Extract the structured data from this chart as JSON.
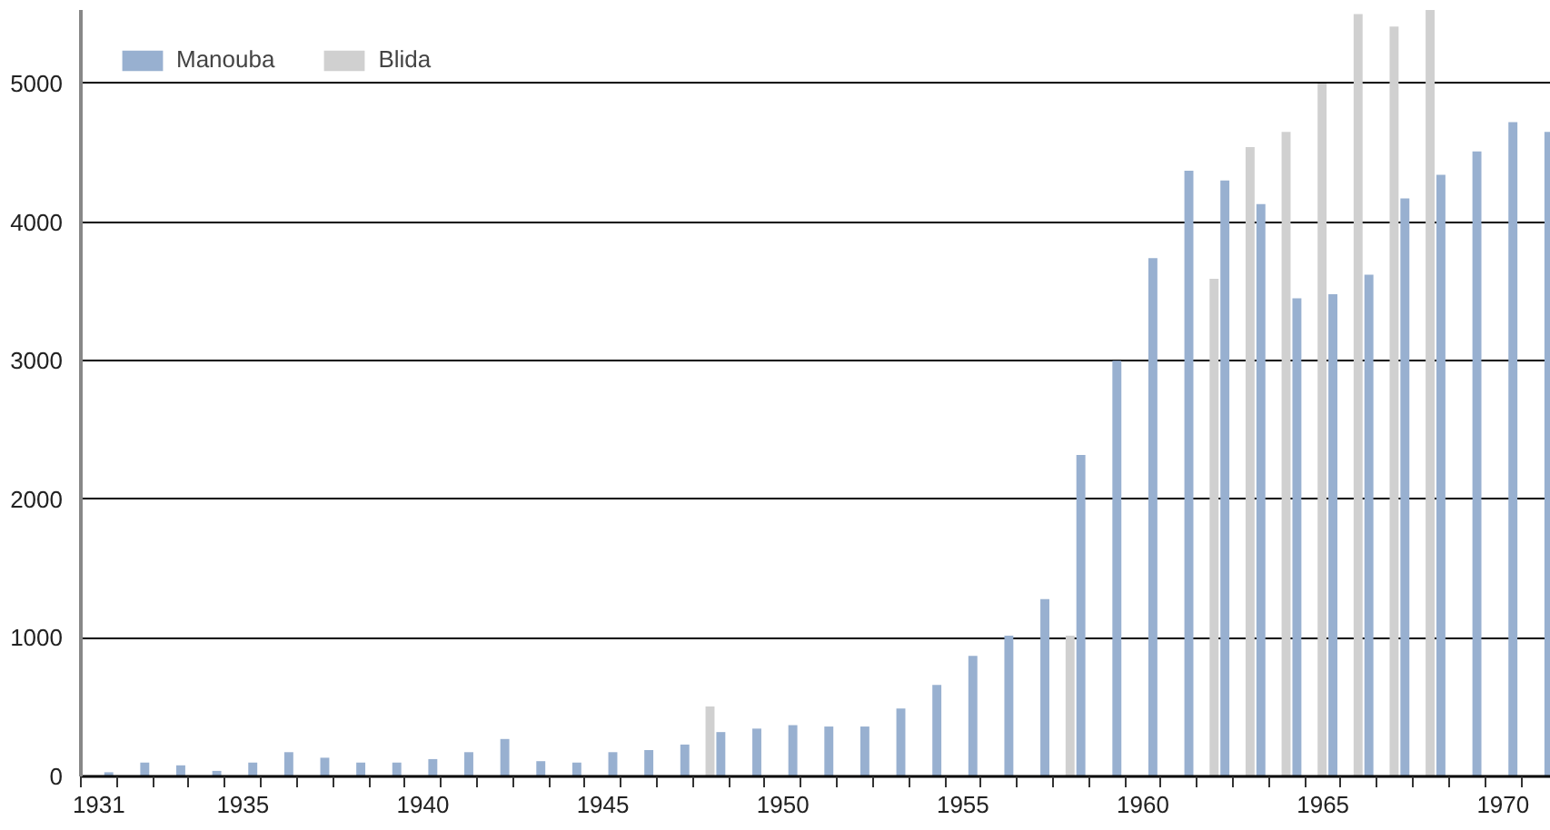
{
  "chart_data": {
    "type": "bar",
    "x": [
      1931,
      1932,
      1933,
      1934,
      1935,
      1936,
      1937,
      1938,
      1939,
      1940,
      1941,
      1942,
      1943,
      1944,
      1945,
      1946,
      1947,
      1948,
      1949,
      1950,
      1951,
      1952,
      1953,
      1954,
      1955,
      1956,
      1957,
      1958,
      1959,
      1960,
      1961,
      1962,
      1963,
      1964,
      1965,
      1966,
      1967,
      1968,
      1969,
      1970,
      1971
    ],
    "series": [
      {
        "name": "Manouba",
        "color": "#98b0d0",
        "values": [
          30,
          100,
          80,
          40,
          100,
          175,
          135,
          100,
          100,
          125,
          175,
          270,
          110,
          100,
          175,
          190,
          230,
          320,
          345,
          370,
          360,
          360,
          490,
          660,
          870,
          1015,
          1280,
          2320,
          3000,
          3740,
          4370,
          4300,
          4130,
          3450,
          3480,
          3620,
          4170,
          4340,
          4510,
          4720,
          4650
        ]
      },
      {
        "name": "Blida",
        "color": "#d0d0d0",
        "values": [
          null,
          null,
          null,
          null,
          null,
          null,
          null,
          null,
          null,
          null,
          null,
          null,
          null,
          null,
          null,
          null,
          null,
          505,
          null,
          null,
          null,
          null,
          null,
          null,
          null,
          null,
          null,
          1015,
          null,
          null,
          null,
          3590,
          4540,
          4650,
          5000,
          5500,
          5410,
          5530,
          null,
          null,
          null
        ]
      }
    ],
    "xlim": [
      1930.5,
      1971.33
    ],
    "xticks": [
      1931,
      1935,
      1940,
      1945,
      1950,
      1955,
      1960,
      1965,
      1970,
      {
        "value": 1930.5,
        "label": null
      },
      {
        "value": 1931.5,
        "label": null
      },
      {
        "value": 1932.5,
        "label": null
      },
      {
        "value": 1933.5,
        "label": null
      },
      {
        "value": 1934.5,
        "label": null
      },
      {
        "value": 1935.5,
        "label": null
      },
      {
        "value": 1936.5,
        "label": null
      },
      {
        "value": 1937.5,
        "label": null
      },
      {
        "value": 1938.5,
        "label": null
      },
      {
        "value": 1939.5,
        "label": null
      },
      {
        "value": 1940.5,
        "label": null
      },
      {
        "value": 1941.5,
        "label": null
      },
      {
        "value": 1942.5,
        "label": null
      },
      {
        "value": 1943.5,
        "label": null
      },
      {
        "value": 1944.5,
        "label": null
      },
      {
        "value": 1945.5,
        "label": null
      },
      {
        "value": 1946.5,
        "label": null
      },
      {
        "value": 1947.5,
        "label": null
      },
      {
        "value": 1948.5,
        "label": null
      },
      {
        "value": 1949.5,
        "label": null
      },
      {
        "value": 1950.5,
        "label": null
      },
      {
        "value": 1951.5,
        "label": null
      },
      {
        "value": 1952.5,
        "label": null
      },
      {
        "value": 1953.5,
        "label": null
      },
      {
        "value": 1954.5,
        "label": null
      },
      {
        "value": 1955.5,
        "label": null
      },
      {
        "value": 1956.5,
        "label": null
      },
      {
        "value": 1957.5,
        "label": null
      },
      {
        "value": 1958.5,
        "label": null
      },
      {
        "value": 1959.5,
        "label": null
      },
      {
        "value": 1960.5,
        "label": null
      },
      {
        "value": 1961.5,
        "label": null
      },
      {
        "value": 1962.5,
        "label": null
      },
      {
        "value": 1963.5,
        "label": null
      },
      {
        "value": 1964.5,
        "label": null
      },
      {
        "value": 1965.5,
        "label": null
      },
      {
        "value": 1966.5,
        "label": null
      },
      {
        "value": 1967.5,
        "label": null
      },
      {
        "value": 1968.5,
        "label": null
      },
      {
        "value": 1969.5,
        "label": null
      },
      {
        "value": 1970.5,
        "label": null
      }
    ],
    "ylim": [
      0,
      5530
    ],
    "yticks": [
      0,
      1000,
      2000,
      3000,
      4000,
      5000
    ],
    "grid": "y",
    "legend": "top left"
  }
}
